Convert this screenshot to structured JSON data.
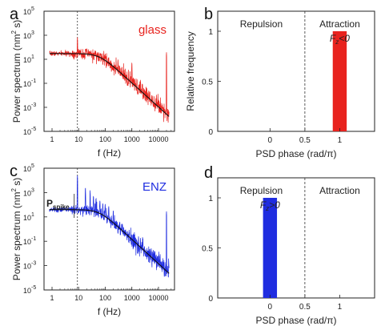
{
  "colors": {
    "glass": "#e8231e",
    "enz": "#1f2de0",
    "fit": "#111111",
    "axis": "#222222"
  },
  "chart_data": [
    {
      "panel": "a",
      "type": "line",
      "scale": "log-log",
      "xlabel": "f (Hz)",
      "ylabel_base": "Power spectrum (nm",
      "ylabel_sup": "2",
      "ylabel_tail": " s)",
      "xlim": [
        0.5,
        40000
      ],
      "ylim": [
        1e-05,
        100000
      ],
      "x_ticks": [
        1,
        10,
        100,
        1000,
        10000
      ],
      "x_tick_labels": [
        "1",
        "10",
        "100",
        "1000",
        "10000"
      ],
      "y_ticks": [
        1e-05,
        0.001,
        0.1,
        10,
        1000,
        100000
      ],
      "y_tick_mantissa": "10",
      "y_tick_exponents": [
        "-5",
        "-3",
        "-1",
        "1",
        "3",
        "5"
      ],
      "reference_line_x": 9,
      "series": [
        {
          "role": "measured",
          "plateau": 30,
          "corner_hz": 60,
          "noise_db": 0.35,
          "peaks": [
            [
              9,
              800
            ],
            [
              18,
              80
            ],
            [
              27,
              40
            ],
            [
              45,
              30
            ],
            [
              63,
              22
            ],
            [
              99,
              30
            ],
            [
              135,
              15
            ],
            [
              300,
              10
            ],
            [
              1000,
              6
            ],
            [
              20000,
              40
            ]
          ]
        },
        {
          "role": "fit",
          "plateau": 30,
          "corner_hz": 60
        }
      ],
      "annotation": "glass"
    },
    {
      "panel": "c",
      "type": "line",
      "scale": "log-log",
      "xlabel": "f (Hz)",
      "ylabel_base": "Power spectrum (nm",
      "ylabel_sup": "2",
      "ylabel_tail": " s)",
      "xlim": [
        0.5,
        40000
      ],
      "ylim": [
        1e-05,
        100000
      ],
      "x_ticks": [
        1,
        10,
        100,
        1000,
        10000
      ],
      "x_tick_labels": [
        "1",
        "10",
        "100",
        "1000",
        "10000"
      ],
      "y_ticks": [
        1e-05,
        0.001,
        0.1,
        10,
        1000,
        100000
      ],
      "y_tick_mantissa": "10",
      "y_tick_exponents": [
        "-5",
        "-3",
        "-1",
        "1",
        "3",
        "5"
      ],
      "reference_line_x": 9,
      "series": [
        {
          "role": "measured",
          "plateau": 40,
          "corner_hz": 60,
          "noise_db": 0.35,
          "peaks": [
            [
              9,
              30000
            ],
            [
              18,
              3000
            ],
            [
              27,
              1500
            ],
            [
              36,
              600
            ],
            [
              45,
              400
            ],
            [
              63,
              250
            ],
            [
              81,
              150
            ],
            [
              99,
              120
            ],
            [
              135,
              80
            ],
            [
              200,
              40
            ],
            [
              20000,
              30
            ]
          ]
        },
        {
          "role": "fit",
          "plateau": 40,
          "corner_hz": 60
        }
      ],
      "annotation": "ENZ",
      "spike_label_main": "P",
      "spike_label_sub": "spike"
    },
    {
      "panel": "b",
      "type": "bar",
      "xlabel": "PSD phase (rad/π)",
      "ylabel": "Relative frequency",
      "xlim": [
        -0.75,
        1.5
      ],
      "ylim": [
        0,
        1.2
      ],
      "x_ticks": [
        0,
        0.5,
        1
      ],
      "x_tick_labels": [
        "0",
        "0.5",
        "1"
      ],
      "y_ticks": [
        0,
        0.5,
        1
      ],
      "y_tick_labels": [
        "0",
        "0.5",
        "1"
      ],
      "divider_x": 0.5,
      "bars": [
        {
          "x": 1,
          "value": 1.0,
          "width": 0.2
        }
      ],
      "region_left": "Repulsion",
      "region_right": "Attraction",
      "force_label_main": "F",
      "force_label_sub": "z",
      "force_label_tail": "<0",
      "force_label_side": "right"
    },
    {
      "panel": "d",
      "type": "bar",
      "xlabel": "PSD phase (rad/π)",
      "ylabel": "",
      "xlim": [
        -0.75,
        1.5
      ],
      "ylim": [
        0,
        1.2
      ],
      "x_ticks": [
        0,
        0.5,
        1
      ],
      "x_tick_labels": [
        "0",
        "0.5",
        "1"
      ],
      "y_ticks": [
        0,
        0.5,
        1
      ],
      "y_tick_labels": [
        "0",
        "0.5",
        "1"
      ],
      "divider_x": 0.5,
      "bars": [
        {
          "x": 0,
          "value": 1.0,
          "width": 0.2
        }
      ],
      "region_left": "Repulsion",
      "region_right": "Attraction",
      "force_label_main": "F",
      "force_label_sub": "z",
      "force_label_tail": ">0",
      "force_label_side": "left"
    }
  ]
}
